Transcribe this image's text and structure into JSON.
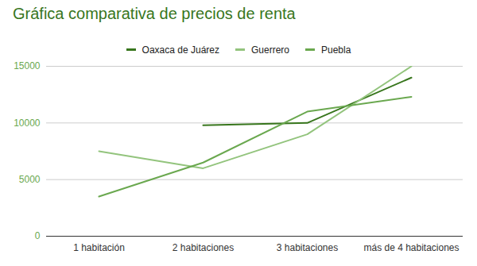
{
  "chart_data": {
    "type": "line",
    "title": "Gráfica comparativa de precios de renta",
    "categories": [
      "1 habitación",
      "2 habitaciones",
      "3 habitaciones",
      "más de 4 habitaciones"
    ],
    "series": [
      {
        "name": "Oaxaca de Juárez",
        "color": "#38761d",
        "values": [
          null,
          9800,
          10000,
          14000
        ]
      },
      {
        "name": "Guerrero",
        "color": "#93c47d",
        "values": [
          7500,
          6000,
          9000,
          15000
        ]
      },
      {
        "name": "Puebla",
        "color": "#6aa84f",
        "values": [
          3500,
          6500,
          11000,
          12300
        ]
      }
    ],
    "ylim": [
      0,
      15000
    ],
    "yticks": [
      0,
      5000,
      10000,
      15000
    ],
    "grid": true,
    "legend": "top"
  }
}
